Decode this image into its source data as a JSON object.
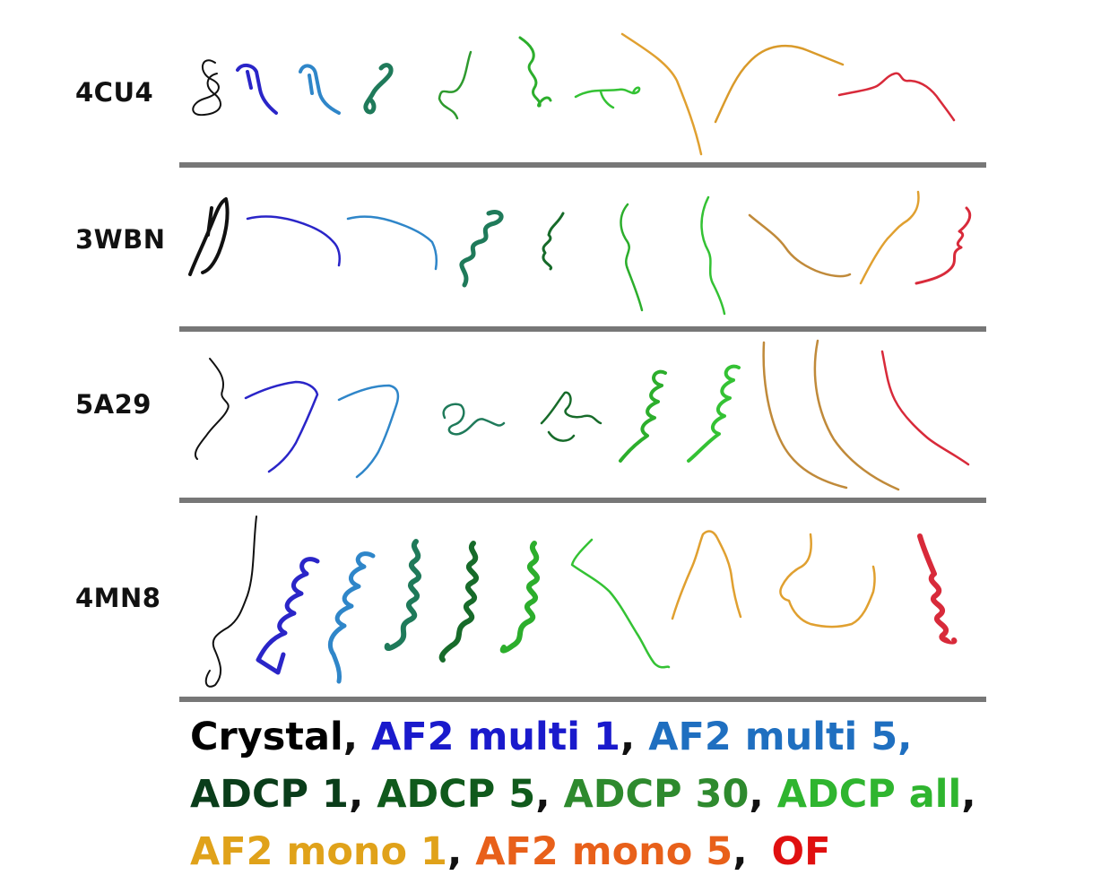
{
  "rows": [
    {
      "label": "4CU4"
    },
    {
      "label": "3WBN"
    },
    {
      "label": "5A29"
    },
    {
      "label": "4MN8"
    }
  ],
  "legend": {
    "crystal": {
      "text": "Crystal",
      "color": "#000000"
    },
    "af2_multi_1": {
      "text": "AF2 multi 1",
      "color": "#1a1acc"
    },
    "af2_multi_5": {
      "text": "AF2 multi 5,",
      "color": "#1f6fc0"
    },
    "adcp_1": {
      "text": "ADCP 1",
      "color": "#0a3d1a"
    },
    "adcp_5": {
      "text": "ADCP 5",
      "color": "#105a1c"
    },
    "adcp_30": {
      "text": "ADCP 30",
      "color": "#2e8a2e"
    },
    "adcp_all": {
      "text": "ADCP all",
      "color": "#2fb52f"
    },
    "af2_mono_1": {
      "text": "AF2 mono 1",
      "color": "#e0a21a"
    },
    "af2_mono_5": {
      "text": "AF2 mono 5",
      "color": "#e8601a"
    },
    "of": {
      "text": "OF",
      "color": "#e01010"
    },
    "comma": ","
  },
  "colors": {
    "crystal": "#111111",
    "af2_multi_1": "#2a25c8",
    "af2_multi_5": "#2f86c9",
    "adcp_1": "#1f7a5a",
    "adcp_5": "#176b2a",
    "adcp_30": "#2cae2c",
    "adcp_all": "#34c234",
    "af2_mono_1": "#e0a030",
    "af2_mono_5": "#d99a2a",
    "of": "#d82a3a",
    "separator": "#777777"
  }
}
